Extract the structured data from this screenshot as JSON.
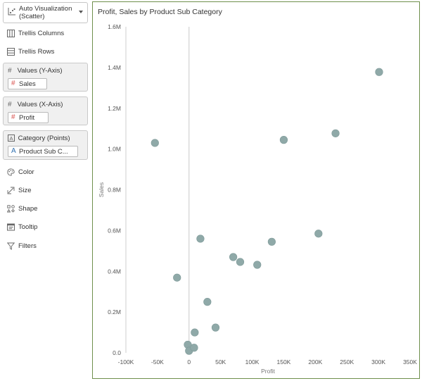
{
  "grammar_panel": {
    "viz_type": {
      "line1": "Auto Visualization",
      "line2": "(Scatter)"
    },
    "trellis_columns": "Trellis Columns",
    "trellis_rows": "Trellis Rows",
    "values_y": {
      "label": "Values (Y-Axis)",
      "pill": "Sales"
    },
    "values_x": {
      "label": "Values (X-Axis)",
      "pill": "Profit"
    },
    "category": {
      "label": "Category (Points)",
      "pill": "Product Sub C..."
    },
    "color": "Color",
    "size": "Size",
    "shape": "Shape",
    "tooltip": "Tooltip",
    "filters": "Filters"
  },
  "colors": {
    "point": "#8fa9a8",
    "zero_line": "#c8c8c8",
    "frame": "#6f8f4c"
  },
  "chart_data": {
    "type": "scatter",
    "title": "Profit, Sales by Product Sub Category",
    "xlabel": "Profit",
    "ylabel": "Sales",
    "xlim": [
      -100000,
      350000
    ],
    "ylim": [
      0,
      1600000
    ],
    "xticks": [
      -100000,
      -50000,
      0,
      50000,
      100000,
      150000,
      200000,
      250000,
      300000,
      350000
    ],
    "xtick_labels": [
      "-100K",
      "-50K",
      "0",
      "50K",
      "100K",
      "150K",
      "200K",
      "250K",
      "300K",
      "350K"
    ],
    "yticks": [
      0,
      200000,
      400000,
      600000,
      800000,
      1000000,
      1200000,
      1400000,
      1600000
    ],
    "ytick_labels": [
      "0.0",
      "0.2M",
      "0.4M",
      "0.6M",
      "0.8M",
      "1.0M",
      "1.2M",
      "1.4M",
      "1.6M"
    ],
    "points": [
      {
        "x": -54000,
        "y": 1030000
      },
      {
        "x": -19000,
        "y": 369000
      },
      {
        "x": -2000,
        "y": 40000
      },
      {
        "x": 0,
        "y": 10000
      },
      {
        "x": 8000,
        "y": 25000
      },
      {
        "x": 9000,
        "y": 100000
      },
      {
        "x": 18000,
        "y": 560000
      },
      {
        "x": 29000,
        "y": 250000
      },
      {
        "x": 42000,
        "y": 124000
      },
      {
        "x": 70000,
        "y": 470000
      },
      {
        "x": 81000,
        "y": 446000
      },
      {
        "x": 108000,
        "y": 432000
      },
      {
        "x": 131000,
        "y": 545000
      },
      {
        "x": 150000,
        "y": 1045000
      },
      {
        "x": 205000,
        "y": 585000
      },
      {
        "x": 232000,
        "y": 1077000
      },
      {
        "x": 301000,
        "y": 1378000
      }
    ]
  }
}
